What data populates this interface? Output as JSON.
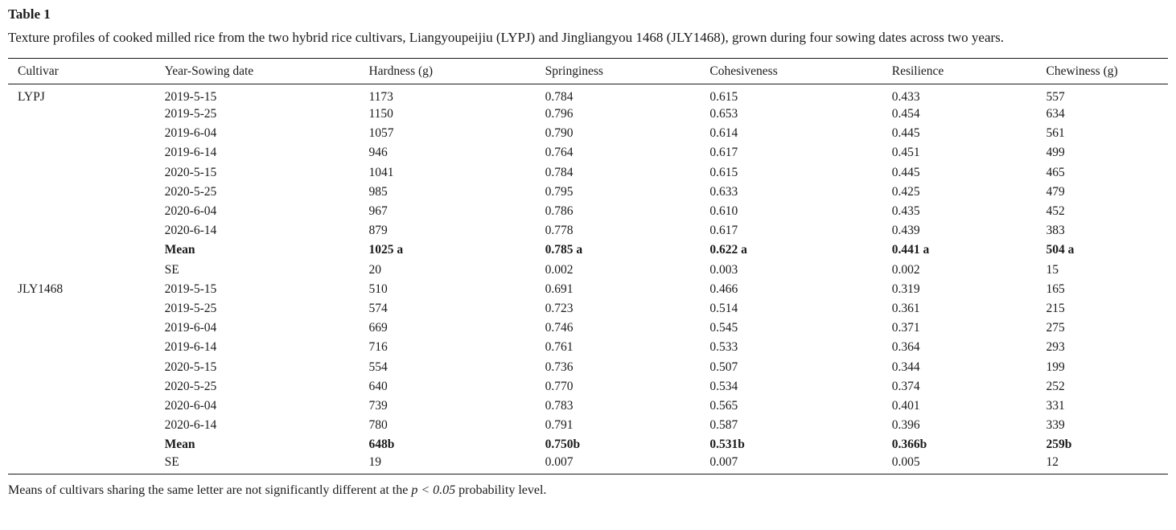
{
  "page": {
    "table_label": "Table 1",
    "caption": "Texture profiles of cooked milled rice from the two hybrid rice cultivars, Liangyoupeijiu (LYPJ) and Jingliangyou 1468 (JLY1468), grown during four sowing dates across two years.",
    "footnote": {
      "prefix": "Means of cultivars sharing the same letter are not significantly different at the ",
      "italic": "p < 0.05",
      "suffix": " probability level."
    }
  },
  "table": {
    "columns": [
      "Cultivar",
      "Year-Sowing date",
      "Hardness (g)",
      "Springiness",
      "Cohesiveness",
      "Resilience",
      "Chewiness (g)"
    ],
    "column_widths_pct": [
      13.5,
      17.6,
      15.2,
      14.2,
      15.7,
      13.3,
      10.5
    ],
    "groups": [
      {
        "cultivar": "LYPJ",
        "rows": [
          {
            "label": "2019-5-15",
            "values": [
              "1173",
              "0.784",
              "0.615",
              "0.433",
              "557"
            ],
            "bold": false
          },
          {
            "label": "2019-5-25",
            "values": [
              "1150",
              "0.796",
              "0.653",
              "0.454",
              "634"
            ],
            "bold": false
          },
          {
            "label": "2019-6-04",
            "values": [
              "1057",
              "0.790",
              "0.614",
              "0.445",
              "561"
            ],
            "bold": false
          },
          {
            "label": "2019-6-14",
            "values": [
              "946",
              "0.764",
              "0.617",
              "0.451",
              "499"
            ],
            "bold": false
          },
          {
            "label": "2020-5-15",
            "values": [
              "1041",
              "0.784",
              "0.615",
              "0.445",
              "465"
            ],
            "bold": false
          },
          {
            "label": "2020-5-25",
            "values": [
              "985",
              "0.795",
              "0.633",
              "0.425",
              "479"
            ],
            "bold": false
          },
          {
            "label": "2020-6-04",
            "values": [
              "967",
              "0.786",
              "0.610",
              "0.435",
              "452"
            ],
            "bold": false
          },
          {
            "label": "2020-6-14",
            "values": [
              "879",
              "0.778",
              "0.617",
              "0.439",
              "383"
            ],
            "bold": false
          },
          {
            "label": "Mean",
            "values": [
              "1025 a",
              "0.785 a",
              "0.622 a",
              "0.441 a",
              "504 a"
            ],
            "bold": true
          },
          {
            "label": "SE",
            "values": [
              "20",
              "0.002",
              "0.003",
              "0.002",
              "15"
            ],
            "bold": false
          }
        ]
      },
      {
        "cultivar": "JLY1468",
        "rows": [
          {
            "label": "2019-5-15",
            "values": [
              "510",
              "0.691",
              "0.466",
              "0.319",
              "165"
            ],
            "bold": false
          },
          {
            "label": "2019-5-25",
            "values": [
              "574",
              "0.723",
              "0.514",
              "0.361",
              "215"
            ],
            "bold": false
          },
          {
            "label": "2019-6-04",
            "values": [
              "669",
              "0.746",
              "0.545",
              "0.371",
              "275"
            ],
            "bold": false
          },
          {
            "label": "2019-6-14",
            "values": [
              "716",
              "0.761",
              "0.533",
              "0.364",
              "293"
            ],
            "bold": false
          },
          {
            "label": "2020-5-15",
            "values": [
              "554",
              "0.736",
              "0.507",
              "0.344",
              "199"
            ],
            "bold": false
          },
          {
            "label": "2020-5-25",
            "values": [
              "640",
              "0.770",
              "0.534",
              "0.374",
              "252"
            ],
            "bold": false
          },
          {
            "label": "2020-6-04",
            "values": [
              "739",
              "0.783",
              "0.565",
              "0.401",
              "331"
            ],
            "bold": false
          },
          {
            "label": "2020-6-14",
            "values": [
              "780",
              "0.791",
              "0.587",
              "0.396",
              "339"
            ],
            "bold": false
          },
          {
            "label": "Mean",
            "values": [
              "648b",
              "0.750b",
              "0.531b",
              "0.366b",
              "259b"
            ],
            "bold": true
          },
          {
            "label": "SE",
            "values": [
              "19",
              "0.007",
              "0.007",
              "0.005",
              "12"
            ],
            "bold": false
          }
        ]
      }
    ]
  }
}
